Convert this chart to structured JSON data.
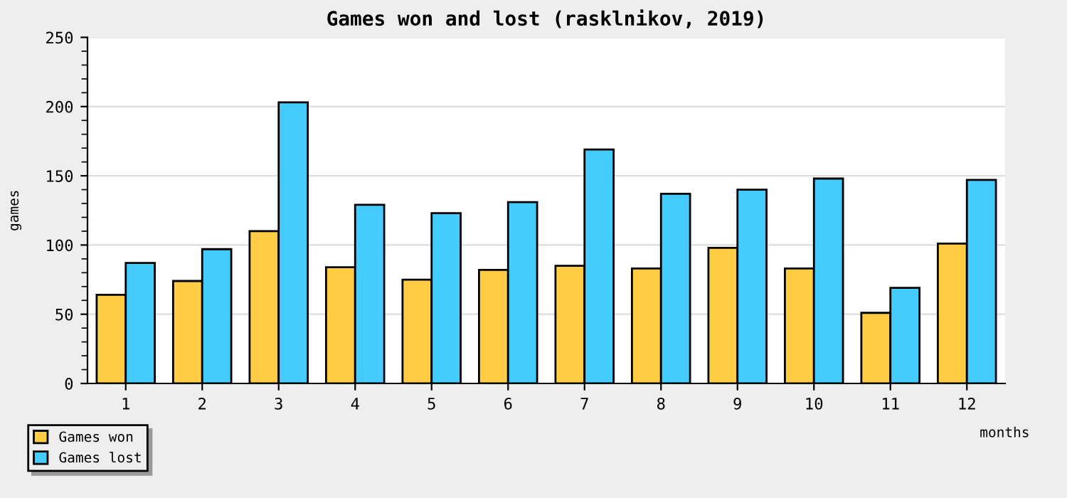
{
  "chart_data": {
    "type": "bar",
    "title": "Games won and lost (rasklnikov, 2019)",
    "xlabel": "months",
    "ylabel": "games",
    "categories": [
      "1",
      "2",
      "3",
      "4",
      "5",
      "6",
      "7",
      "8",
      "9",
      "10",
      "11",
      "12"
    ],
    "series": [
      {
        "name": "Games won",
        "color": "#ffcc44",
        "values": [
          64,
          74,
          110,
          84,
          75,
          82,
          85,
          83,
          98,
          83,
          51,
          101
        ]
      },
      {
        "name": "Games lost",
        "color": "#44ccff",
        "values": [
          87,
          97,
          203,
          129,
          123,
          131,
          169,
          137,
          140,
          148,
          69,
          147
        ]
      }
    ],
    "ylim": [
      0,
      250
    ],
    "yticks": [
      0,
      50,
      100,
      150,
      200,
      250
    ],
    "grid": "y",
    "legend": "bottom left"
  }
}
